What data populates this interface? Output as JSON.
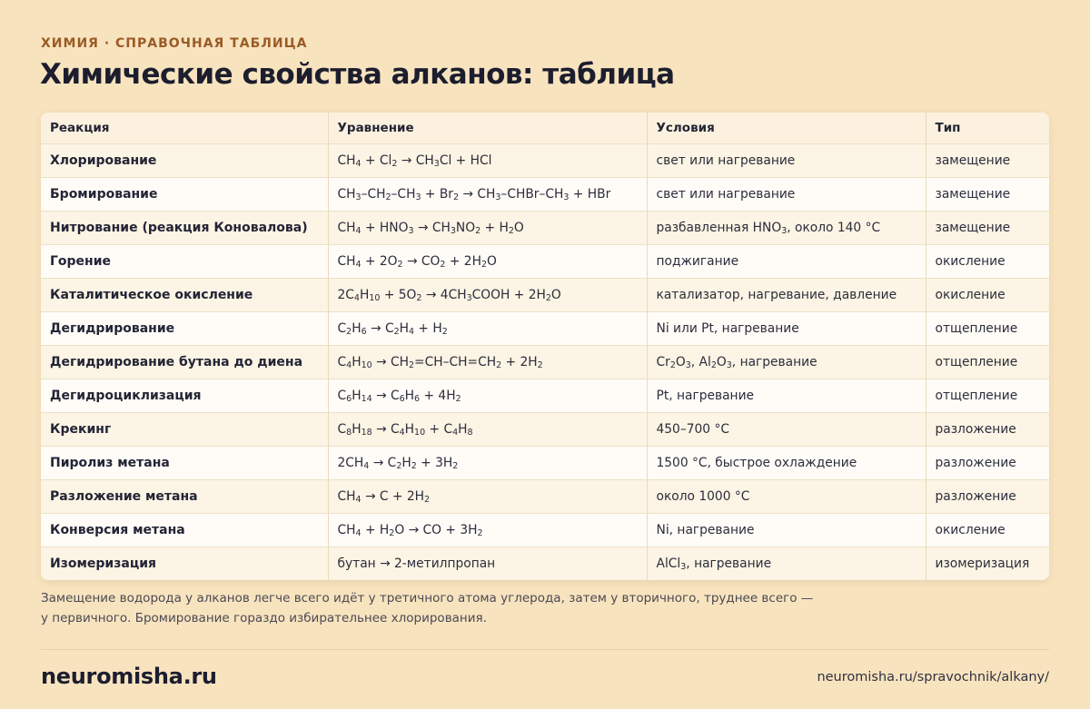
{
  "header": {
    "eyebrow": "ХИМИЯ · СПРАВОЧНАЯ ТАБЛИЦА",
    "title": "Химические свойства алканов: таблица"
  },
  "table": {
    "columns": [
      "Реакция",
      "Уравнение",
      "Условия",
      "Тип"
    ],
    "rows": [
      {
        "reaction": "Хлорирование",
        "equation": "CH<sub>4</sub> + Cl<sub>2</sub> → CH<sub>3</sub>Cl + HCl",
        "conditions": "свет или нагревание",
        "type": "замещение"
      },
      {
        "reaction": "Бромирование",
        "equation": "CH<sub>3</sub>–CH<sub>2</sub>–CH<sub>3</sub> + Br<sub>2</sub> → CH<sub>3</sub>–CHBr–CH<sub>3</sub> + HBr",
        "conditions": "свет или нагревание",
        "type": "замещение"
      },
      {
        "reaction": "Нитрование (реакция Коновалова)",
        "equation": "CH<sub>4</sub> + HNO<sub>3</sub> → CH<sub>3</sub>NO<sub>2</sub> + H<sub>2</sub>O",
        "conditions": "разбавленная HNO<sub>3</sub>, около 140 °C",
        "type": "замещение"
      },
      {
        "reaction": "Горение",
        "equation": "CH<sub>4</sub> + 2O<sub>2</sub> → CO<sub>2</sub> + 2H<sub>2</sub>O",
        "conditions": "поджигание",
        "type": "окисление"
      },
      {
        "reaction": "Каталитическое окисление",
        "equation": "2C<sub>4</sub>H<sub>10</sub> + 5O<sub>2</sub> → 4CH<sub>3</sub>COOH + 2H<sub>2</sub>O",
        "conditions": "катализатор, нагревание, давление",
        "type": "окисление"
      },
      {
        "reaction": "Дегидрирование",
        "equation": "C<sub>2</sub>H<sub>6</sub> → C<sub>2</sub>H<sub>4</sub> + H<sub>2</sub>",
        "conditions": "Ni или Pt, нагревание",
        "type": "отщепление"
      },
      {
        "reaction": "Дегидрирование бутана до диена",
        "equation": "C<sub>4</sub>H<sub>10</sub> → CH<sub>2</sub>=CH–CH=CH<sub>2</sub> + 2H<sub>2</sub>",
        "conditions": "Cr<sub>2</sub>O<sub>3</sub>, Al<sub>2</sub>O<sub>3</sub>, нагревание",
        "type": "отщепление"
      },
      {
        "reaction": "Дегидроциклизация",
        "equation": "C<sub>6</sub>H<sub>14</sub> → C<sub>6</sub>H<sub>6</sub> + 4H<sub>2</sub>",
        "conditions": "Pt, нагревание",
        "type": "отщепление"
      },
      {
        "reaction": "Крекинг",
        "equation": "C<sub>8</sub>H<sub>18</sub> → C<sub>4</sub>H<sub>10</sub> + C<sub>4</sub>H<sub>8</sub>",
        "conditions": "450–700 °C",
        "type": "разложение"
      },
      {
        "reaction": "Пиролиз метана",
        "equation": "2CH<sub>4</sub> → C<sub>2</sub>H<sub>2</sub> + 3H<sub>2</sub>",
        "conditions": "1500 °C, быстрое охлаждение",
        "type": "разложение"
      },
      {
        "reaction": "Разложение метана",
        "equation": "CH<sub>4</sub> → C + 2H<sub>2</sub>",
        "conditions": "около 1000 °C",
        "type": "разложение"
      },
      {
        "reaction": "Конверсия метана",
        "equation": "CH<sub>4</sub> + H<sub>2</sub>O → CO + 3H<sub>2</sub>",
        "conditions": "Ni, нагревание",
        "type": "окисление"
      },
      {
        "reaction": "Изомеризация",
        "equation": "бутан → 2-метилпропан",
        "conditions": "AlCl<sub>3</sub>, нагревание",
        "type": "изомеризация"
      }
    ]
  },
  "note": "Замещение водорода у алканов легче всего идёт у третичного атома углерода, затем у вторичного, труднее всего — у первичного. Бромирование гораздо избирательнее хлорирования.",
  "footer": {
    "brand": "neuromisha.ru",
    "url": "neuromisha.ru/spravochnik/alkany/"
  }
}
